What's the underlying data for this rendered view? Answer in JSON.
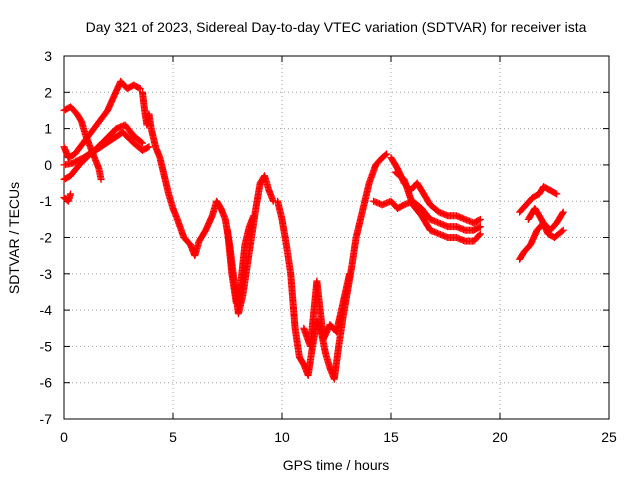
{
  "chart_data": {
    "type": "scatter",
    "title": "Day 321 of 2023, Sidereal Day-to-day VTEC variation (SDTVAR) for receiver ista",
    "xlabel": "GPS time / hours",
    "ylabel": "SDTVAR / TECUs",
    "xlim": [
      0,
      25
    ],
    "ylim": [
      -7,
      3
    ],
    "x_ticks": [
      "0",
      "5",
      "10",
      "15",
      "20",
      "25"
    ],
    "y_ticks": [
      "3",
      "2",
      "1",
      "0",
      "-1",
      "-2",
      "-3",
      "-4",
      "-5",
      "-6",
      "-7"
    ],
    "grid": true,
    "legend": "none",
    "marker": "+",
    "series": [
      {
        "color": "#ff0000",
        "tracks": [
          [
            [
              0,
              1.5
            ],
            [
              0.3,
              1.6
            ],
            [
              0.6,
              1.4
            ],
            [
              0.8,
              1.2
            ],
            [
              1.0,
              0.8
            ],
            [
              1.2,
              0.5
            ],
            [
              1.4,
              0.2
            ],
            [
              1.6,
              -0.1
            ],
            [
              1.7,
              -0.4
            ]
          ],
          [
            [
              0,
              -0.9
            ],
            [
              0.2,
              -1.0
            ],
            [
              0.3,
              -0.8
            ]
          ],
          [
            [
              0,
              0.5
            ],
            [
              0.2,
              0.2
            ],
            [
              0.5,
              0.3
            ],
            [
              1.0,
              0.7
            ],
            [
              1.5,
              1.1
            ],
            [
              2.0,
              1.5
            ],
            [
              2.3,
              1.9
            ],
            [
              2.6,
              2.3
            ],
            [
              2.9,
              2.1
            ],
            [
              3.2,
              2.2
            ],
            [
              3.5,
              2.1
            ]
          ],
          [
            [
              0,
              -0.4
            ],
            [
              0.3,
              -0.3
            ],
            [
              0.7,
              0
            ],
            [
              1.2,
              0.3
            ],
            [
              1.7,
              0.5
            ],
            [
              2.2,
              0.7
            ],
            [
              2.7,
              0.9
            ],
            [
              3.2,
              0.6
            ],
            [
              3.6,
              0.4
            ],
            [
              3.9,
              0.5
            ]
          ],
          [
            [
              0,
              0
            ],
            [
              0.4,
              0.05
            ],
            [
              0.9,
              0.2
            ],
            [
              1.4,
              0.4
            ],
            [
              1.9,
              0.7
            ],
            [
              2.4,
              1.0
            ],
            [
              2.8,
              1.1
            ],
            [
              3.2,
              0.8
            ],
            [
              3.6,
              0.6
            ]
          ],
          [
            [
              3.6,
              2.0
            ],
            [
              3.7,
              1.5
            ],
            [
              3.8,
              1.1
            ],
            [
              3.9,
              1.4
            ],
            [
              4.0,
              1.0
            ],
            [
              4.2,
              0.5
            ],
            [
              4.4,
              0.2
            ],
            [
              4.6,
              -0.3
            ],
            [
              4.8,
              -0.8
            ],
            [
              5.0,
              -1.2
            ],
            [
              5.2,
              -1.5
            ],
            [
              5.5,
              -2.0
            ],
            [
              5.8,
              -2.2
            ],
            [
              6.0,
              -2.5
            ],
            [
              6.2,
              -2.1
            ],
            [
              6.5,
              -1.8
            ],
            [
              6.8,
              -1.4
            ],
            [
              7.0,
              -1.0
            ],
            [
              7.2,
              -1.2
            ],
            [
              7.4,
              -1.5
            ],
            [
              7.6,
              -2.2
            ],
            [
              7.8,
              -3.2
            ],
            [
              8.0,
              -4.1
            ],
            [
              8.2,
              -3.6
            ],
            [
              8.4,
              -2.8
            ],
            [
              8.6,
              -2.0
            ],
            [
              8.8,
              -1.2
            ],
            [
              9.0,
              -0.5
            ],
            [
              9.2,
              -0.3
            ],
            [
              9.4,
              -0.7
            ],
            [
              9.6,
              -1.0
            ]
          ],
          [
            [
              7.5,
              -1.8
            ],
            [
              7.7,
              -3.0
            ],
            [
              7.9,
              -3.8
            ],
            [
              8.1,
              -3.3
            ],
            [
              8.3,
              -2.2
            ],
            [
              8.5,
              -1.7
            ],
            [
              8.7,
              -1.4
            ]
          ],
          [
            [
              9.8,
              -1.0
            ],
            [
              10.0,
              -1.5
            ],
            [
              10.2,
              -2.2
            ],
            [
              10.4,
              -3.0
            ],
            [
              10.6,
              -4.5
            ],
            [
              10.8,
              -5.3
            ],
            [
              11.0,
              -5.5
            ],
            [
              11.2,
              -5.8
            ],
            [
              11.4,
              -5.0
            ],
            [
              11.6,
              -4.3
            ],
            [
              11.8,
              -4.6
            ],
            [
              12.0,
              -5.2
            ],
            [
              12.2,
              -5.6
            ],
            [
              12.4,
              -5.9
            ],
            [
              12.6,
              -5.0
            ],
            [
              12.8,
              -4.2
            ],
            [
              13.0,
              -3.5
            ],
            [
              13.2,
              -2.8
            ],
            [
              13.4,
              -2.0
            ],
            [
              13.6,
              -1.5
            ],
            [
              13.8,
              -1.0
            ],
            [
              14.0,
              -0.5
            ],
            [
              14.3,
              0
            ],
            [
              14.6,
              0.2
            ],
            [
              14.8,
              0.3
            ]
          ],
          [
            [
              11.0,
              -4.5
            ],
            [
              11.3,
              -5.0
            ],
            [
              11.6,
              -3.2
            ],
            [
              11.9,
              -4.8
            ],
            [
              12.2,
              -4.4
            ],
            [
              12.5,
              -4.6
            ],
            [
              12.8,
              -3.8
            ],
            [
              13.1,
              -3.0
            ]
          ],
          [
            [
              14.2,
              -1.0
            ],
            [
              14.6,
              -1.1
            ],
            [
              15.0,
              -1.0
            ],
            [
              15.3,
              -1.2
            ],
            [
              15.6,
              -1.1
            ],
            [
              16.0,
              -1.0
            ],
            [
              16.4,
              -1.2
            ],
            [
              16.8,
              -1.5
            ],
            [
              17.2,
              -1.6
            ],
            [
              17.6,
              -1.7
            ],
            [
              18.0,
              -1.7
            ],
            [
              18.4,
              -1.8
            ],
            [
              18.8,
              -1.8
            ],
            [
              19.1,
              -1.7
            ]
          ],
          [
            [
              15.0,
              0.2
            ],
            [
              15.3,
              -0.1
            ],
            [
              15.6,
              -0.5
            ],
            [
              15.9,
              -0.7
            ],
            [
              16.2,
              -0.5
            ],
            [
              16.5,
              -0.8
            ],
            [
              16.8,
              -1.1
            ],
            [
              17.2,
              -1.3
            ],
            [
              17.6,
              -1.4
            ],
            [
              18.0,
              -1.4
            ],
            [
              18.4,
              -1.5
            ],
            [
              18.8,
              -1.6
            ],
            [
              19.1,
              -1.5
            ]
          ],
          [
            [
              15.2,
              -0.2
            ],
            [
              15.6,
              -0.4
            ],
            [
              16.0,
              -1.1
            ],
            [
              16.4,
              -1.4
            ],
            [
              16.8,
              -1.8
            ],
            [
              17.2,
              -1.9
            ],
            [
              17.6,
              -2.0
            ],
            [
              18.0,
              -2.0
            ],
            [
              18.4,
              -2.1
            ],
            [
              18.8,
              -2.1
            ],
            [
              19.1,
              -1.9
            ]
          ],
          [
            [
              20.9,
              -2.6
            ],
            [
              21.1,
              -2.4
            ],
            [
              21.4,
              -2.2
            ],
            [
              21.7,
              -1.8
            ],
            [
              22.0,
              -1.6
            ],
            [
              22.3,
              -1.8
            ],
            [
              22.6,
              -1.6
            ],
            [
              22.9,
              -1.3
            ]
          ],
          [
            [
              20.9,
              -1.3
            ],
            [
              21.2,
              -1.1
            ],
            [
              21.5,
              -0.9
            ],
            [
              21.8,
              -0.8
            ],
            [
              22.0,
              -0.6
            ],
            [
              22.3,
              -0.7
            ],
            [
              22.6,
              -0.8
            ]
          ],
          [
            [
              21.3,
              -1.5
            ],
            [
              21.6,
              -1.2
            ],
            [
              21.9,
              -1.5
            ],
            [
              22.2,
              -1.9
            ],
            [
              22.5,
              -2.0
            ],
            [
              22.9,
              -1.8
            ]
          ]
        ]
      }
    ]
  }
}
